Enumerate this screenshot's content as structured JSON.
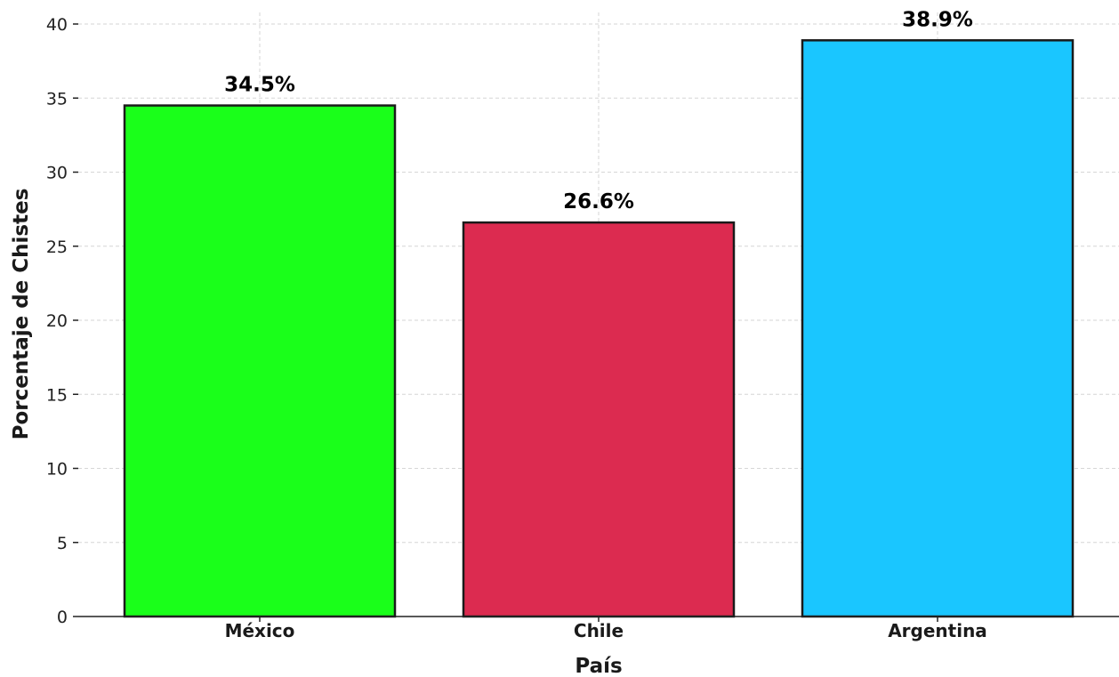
{
  "chart_data": {
    "type": "bar",
    "categories": [
      "México",
      "Chile",
      "Argentina"
    ],
    "values": [
      34.5,
      26.6,
      38.9
    ],
    "data_labels": [
      "34.5%",
      "26.6%",
      "38.9%"
    ],
    "colors": [
      "#1aff1a",
      "#dc2b50",
      "#1ac6ff"
    ],
    "xlabel": "País",
    "ylabel": "Porcentaje de Chistes",
    "ylim": [
      0,
      40
    ],
    "yticks": [
      0,
      5,
      10,
      15,
      20,
      25,
      30,
      35,
      40
    ],
    "grid": true,
    "legend": "none"
  }
}
